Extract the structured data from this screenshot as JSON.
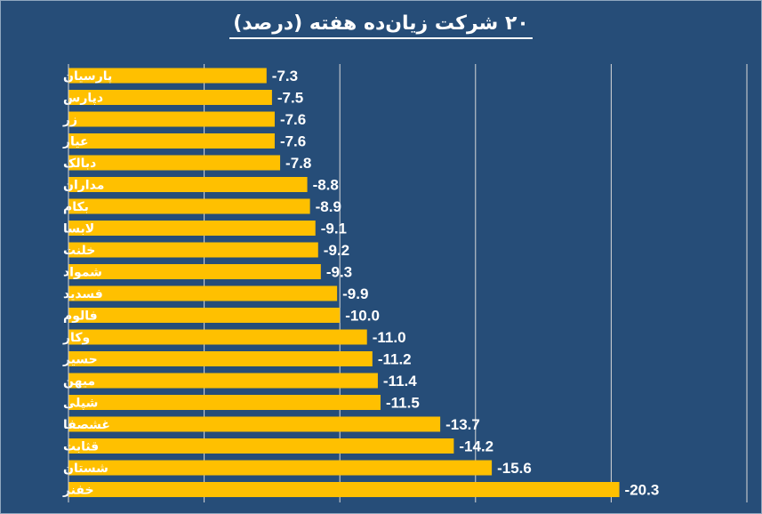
{
  "chart_data": {
    "type": "bar",
    "orientation": "horizontal",
    "title": "۲۰ شرکت زیان‌ده هفته (درصد)",
    "categories": [
      "پارسیان",
      "دپارس",
      "زر",
      "عیار",
      "دبالک",
      "مداران",
      "بکام",
      "لابسا",
      "خلنت",
      "شمواد",
      "فسدید",
      "فالوم",
      "وکار",
      "حسیر",
      "میهن",
      "شپلی",
      "غشصفا",
      "قثابت",
      "شستان",
      "خفنر"
    ],
    "values": [
      -7.3,
      -7.5,
      -7.6,
      -7.6,
      -7.8,
      -8.8,
      -8.9,
      -9.1,
      -9.2,
      -9.3,
      -9.9,
      -10.0,
      -11.0,
      -11.2,
      -11.4,
      -11.5,
      -13.7,
      -14.2,
      -15.6,
      -20.3
    ],
    "value_labels": [
      "-7.3",
      "-7.5",
      "-7.6",
      "-7.6",
      "-7.8",
      "-8.8",
      "-8.9",
      "-9.1",
      "-9.2",
      "-9.3",
      "-9.9",
      "-10.0",
      "-11.0",
      "-11.2",
      "-11.4",
      "-11.5",
      "-13.7",
      "-14.2",
      "-15.6",
      "-20.3"
    ],
    "xlim": [
      0,
      -25
    ],
    "grid": true,
    "legend": "none",
    "colors": {
      "background": "#264d78",
      "bar": "#ffc000",
      "grid": "#d9d9d9",
      "text": "#ffffff"
    }
  }
}
